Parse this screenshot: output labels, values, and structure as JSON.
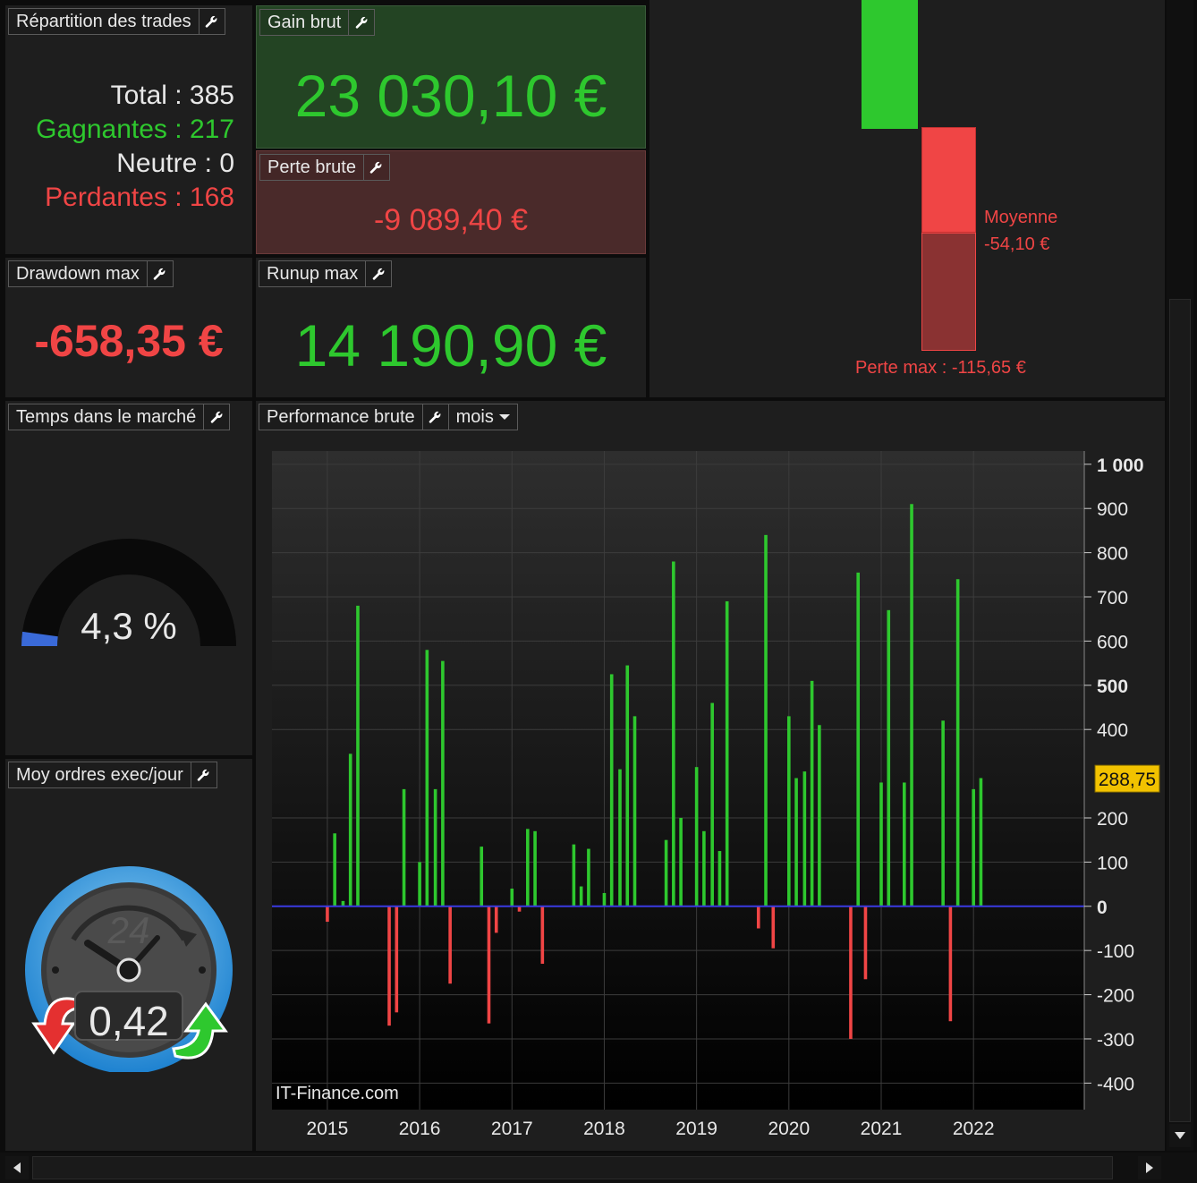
{
  "repartition": {
    "title": "Répartition des trades",
    "total": "Total : 385",
    "gagnantes": "Gagnantes : 217",
    "neutre": "Neutre : 0",
    "perdantes": "Perdantes : 168"
  },
  "gain_brut": {
    "title": "Gain brut",
    "value": "23 030,10 €"
  },
  "perte_brute": {
    "title": "Perte brute",
    "value": "-9 089,40 €"
  },
  "drawdown": {
    "title": "Drawdown max",
    "value": "-658,35 €"
  },
  "runup": {
    "title": "Runup max",
    "value": "14 190,90 €"
  },
  "loss_stats": {
    "moyenne_label": "Moyenne",
    "moyenne_value": "-54,10 €",
    "perte_max": "Perte max : -115,65 €"
  },
  "temps_marche": {
    "title": "Temps dans le marché",
    "value": "4,3 %",
    "fraction": 0.043
  },
  "moy_ordres": {
    "title": "Moy ordres exec/jour",
    "value": "0,42",
    "dial_label": "24"
  },
  "performance": {
    "title": "Performance brute",
    "period": "mois",
    "watermark": "IT-Finance.com",
    "current_value_label": "288,75"
  },
  "colors": {
    "gain": "#2ec82e",
    "loss": "#f04545",
    "axis_zero": "#3a3ae0",
    "value_badge": "#f2c200"
  },
  "chart_data": {
    "type": "bar",
    "xlabel": "",
    "ylabel": "",
    "ylim": [
      -460,
      1030
    ],
    "xlim": [
      2014.4,
      2023.2
    ],
    "x_ticks": [
      "2015",
      "2016",
      "2017",
      "2018",
      "2019",
      "2020",
      "2021",
      "2022"
    ],
    "y_ticks": [
      {
        "label": "1 000",
        "value": 1000,
        "bold": true
      },
      {
        "label": "900",
        "value": 900
      },
      {
        "label": "800",
        "value": 800
      },
      {
        "label": "700",
        "value": 700
      },
      {
        "label": "600",
        "value": 600
      },
      {
        "label": "500",
        "value": 500,
        "bold": true
      },
      {
        "label": "400",
        "value": 400
      },
      {
        "label": "288,75",
        "value": 288.75,
        "badge": true
      },
      {
        "label": "200",
        "value": 200
      },
      {
        "label": "100",
        "value": 100
      },
      {
        "label": "0",
        "value": 0,
        "bold": true
      },
      {
        "label": "-100",
        "value": -100
      },
      {
        "label": "-200",
        "value": -200
      },
      {
        "label": "-300",
        "value": -300
      },
      {
        "label": "-400",
        "value": -400
      }
    ],
    "grid": true,
    "series": [
      {
        "values": [
          {
            "x": 2015.0,
            "y": -35
          },
          {
            "x": 2015.08,
            "y": 165
          },
          {
            "x": 2015.17,
            "y": 12
          },
          {
            "x": 2015.25,
            "y": 345
          },
          {
            "x": 2015.33,
            "y": 680
          },
          {
            "x": 2015.67,
            "y": -270
          },
          {
            "x": 2015.75,
            "y": -240
          },
          {
            "x": 2015.83,
            "y": 265
          },
          {
            "x": 2016.0,
            "y": 100
          },
          {
            "x": 2016.08,
            "y": 580
          },
          {
            "x": 2016.17,
            "y": 265
          },
          {
            "x": 2016.25,
            "y": 555
          },
          {
            "x": 2016.33,
            "y": -175
          },
          {
            "x": 2016.67,
            "y": 135
          },
          {
            "x": 2016.75,
            "y": -265
          },
          {
            "x": 2016.83,
            "y": -60
          },
          {
            "x": 2017.0,
            "y": 40
          },
          {
            "x": 2017.08,
            "y": -12
          },
          {
            "x": 2017.17,
            "y": 175
          },
          {
            "x": 2017.25,
            "y": 170
          },
          {
            "x": 2017.33,
            "y": -130
          },
          {
            "x": 2017.67,
            "y": 140
          },
          {
            "x": 2017.75,
            "y": 45
          },
          {
            "x": 2017.83,
            "y": 130
          },
          {
            "x": 2018.0,
            "y": 30
          },
          {
            "x": 2018.08,
            "y": 525
          },
          {
            "x": 2018.17,
            "y": 310
          },
          {
            "x": 2018.25,
            "y": 545
          },
          {
            "x": 2018.33,
            "y": 430
          },
          {
            "x": 2018.67,
            "y": 150
          },
          {
            "x": 2018.75,
            "y": 780
          },
          {
            "x": 2018.83,
            "y": 200
          },
          {
            "x": 2019.0,
            "y": 315
          },
          {
            "x": 2019.08,
            "y": 170
          },
          {
            "x": 2019.17,
            "y": 460
          },
          {
            "x": 2019.25,
            "y": 125
          },
          {
            "x": 2019.33,
            "y": 690
          },
          {
            "x": 2019.67,
            "y": -50
          },
          {
            "x": 2019.75,
            "y": 840
          },
          {
            "x": 2019.83,
            "y": -95
          },
          {
            "x": 2020.0,
            "y": 430
          },
          {
            "x": 2020.08,
            "y": 290
          },
          {
            "x": 2020.17,
            "y": 305
          },
          {
            "x": 2020.25,
            "y": 510
          },
          {
            "x": 2020.33,
            "y": 410
          },
          {
            "x": 2020.67,
            "y": -300
          },
          {
            "x": 2020.75,
            "y": 755
          },
          {
            "x": 2020.83,
            "y": -165
          },
          {
            "x": 2021.0,
            "y": 280
          },
          {
            "x": 2021.08,
            "y": 670
          },
          {
            "x": 2021.25,
            "y": 280
          },
          {
            "x": 2021.33,
            "y": 910
          },
          {
            "x": 2021.67,
            "y": 420
          },
          {
            "x": 2021.75,
            "y": -260
          },
          {
            "x": 2021.83,
            "y": 740
          },
          {
            "x": 2022.0,
            "y": 265
          },
          {
            "x": 2022.08,
            "y": 290
          }
        ]
      }
    ]
  }
}
